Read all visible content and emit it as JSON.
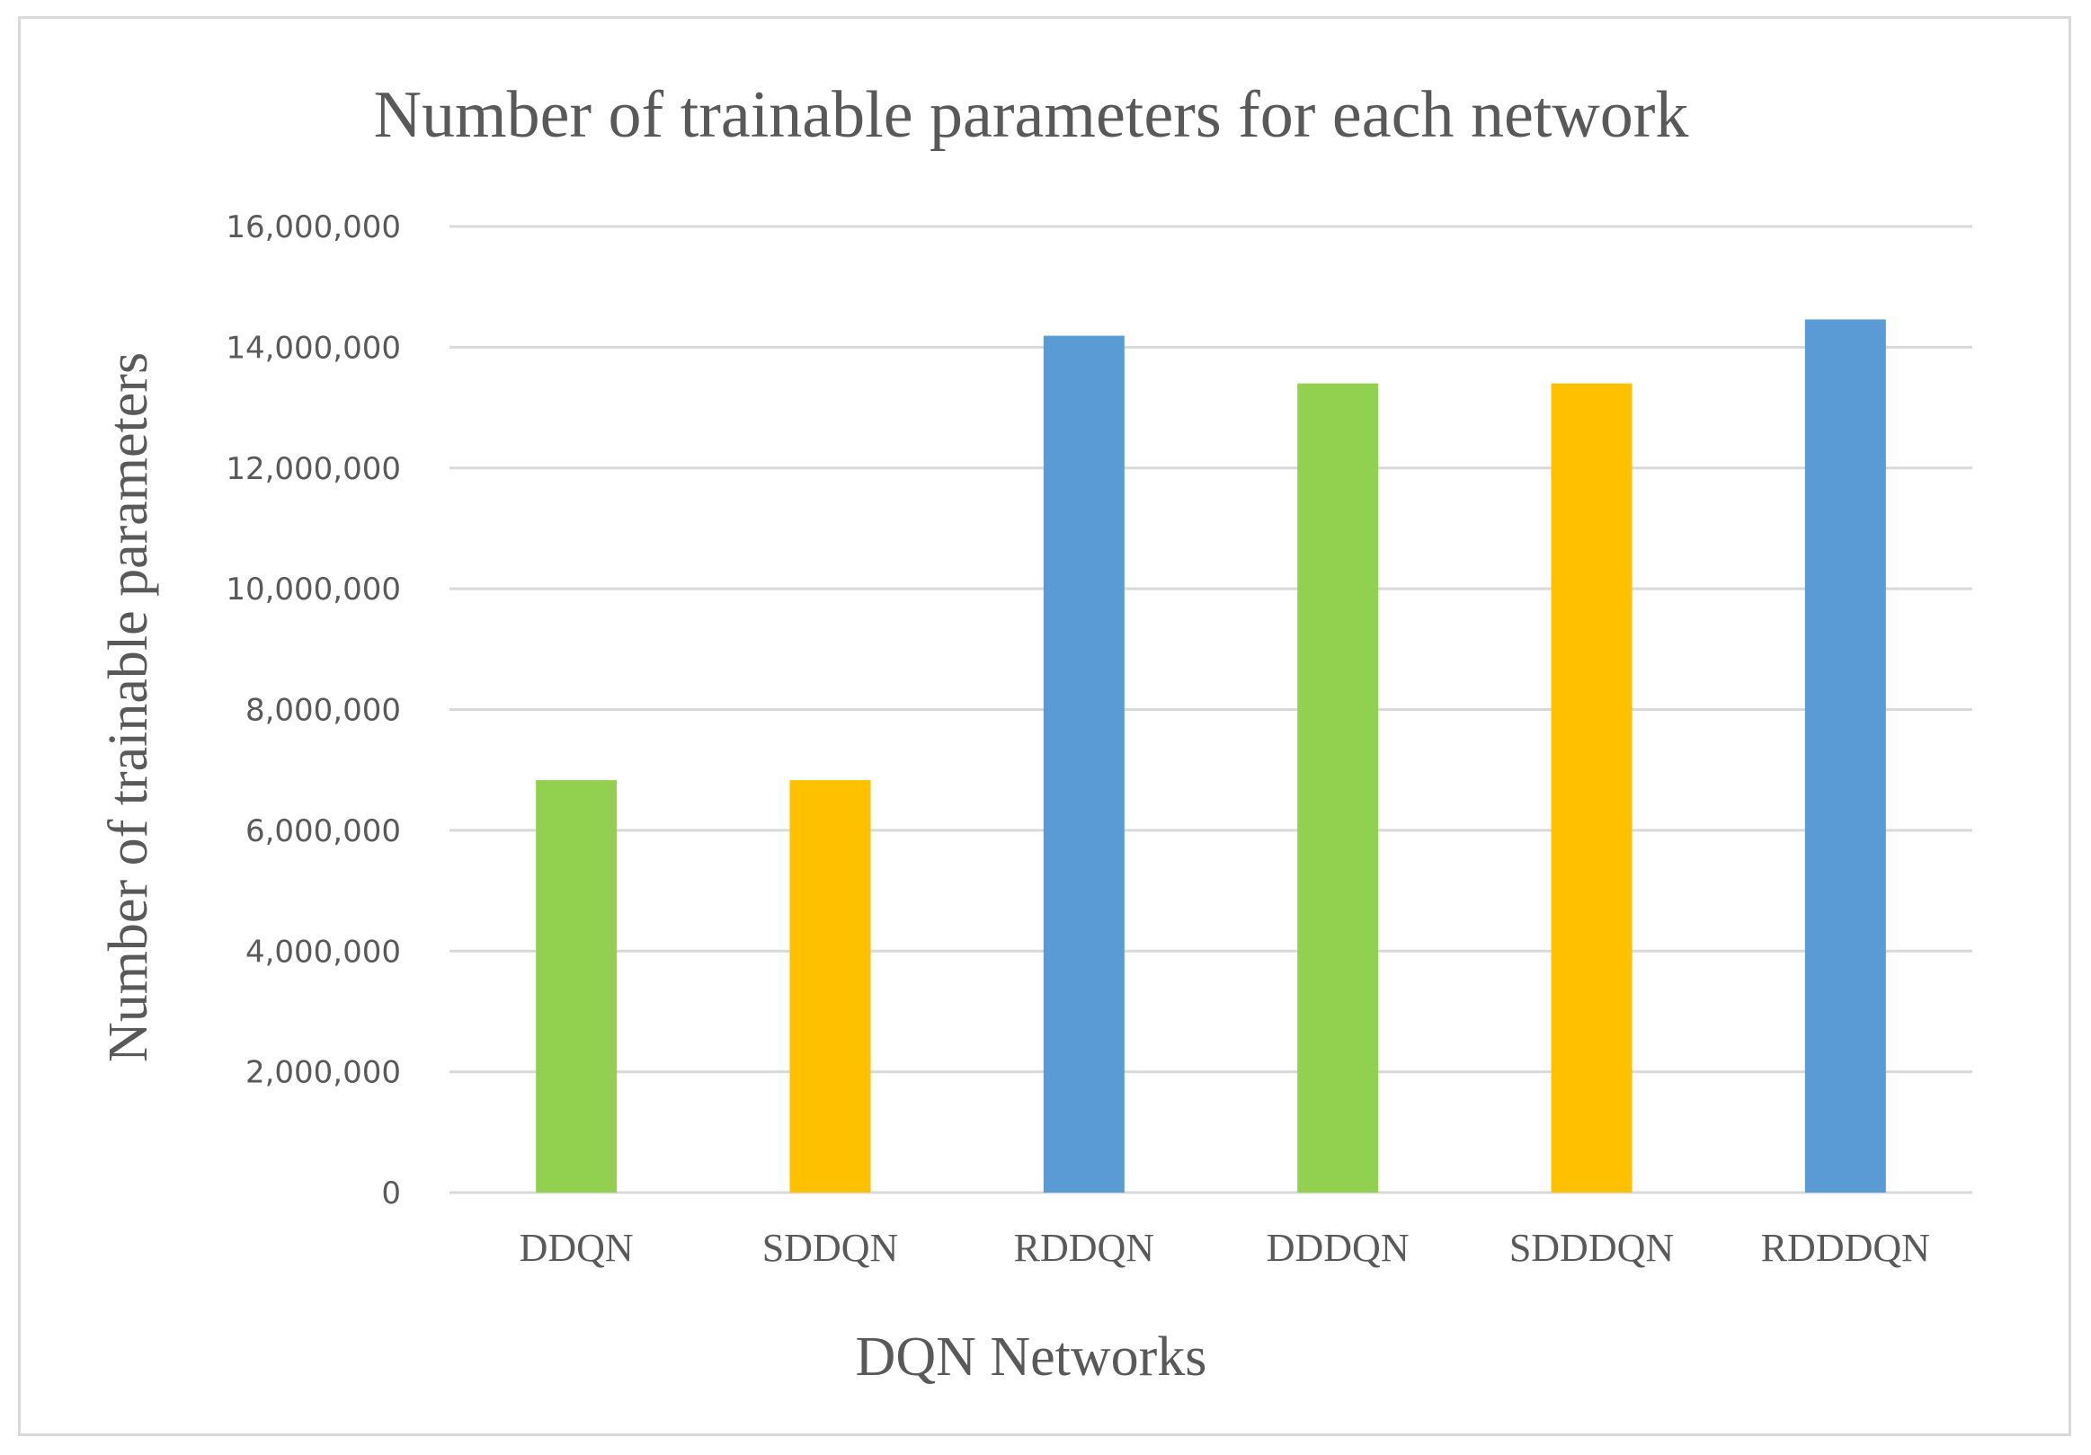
{
  "chart_data": {
    "type": "bar",
    "title": "Number of trainable parameters for each network",
    "xlabel": "DQN Networks",
    "ylabel": "Number of trainable parameters",
    "categories": [
      "DDQN",
      "SDDQN",
      "RDDQN",
      "DDDQN",
      "SDDDQN",
      "RDDDQN"
    ],
    "values": [
      6830000,
      6830000,
      14190000,
      13400000,
      13400000,
      14460000
    ],
    "bar_colors": [
      "#92d050",
      "#ffc000",
      "#5b9bd5",
      "#92d050",
      "#ffc000",
      "#5b9bd5"
    ],
    "ylim": [
      0,
      16000000
    ],
    "yticks": [
      0,
      2000000,
      4000000,
      6000000,
      8000000,
      10000000,
      12000000,
      14000000,
      16000000
    ],
    "ytick_labels": [
      "0",
      "2,000,000",
      "4,000,000",
      "6,000,000",
      "8,000,000",
      "10,000,000",
      "12,000,000",
      "14,000,000",
      "16,000,000"
    ],
    "grid": true,
    "legend": "none"
  }
}
